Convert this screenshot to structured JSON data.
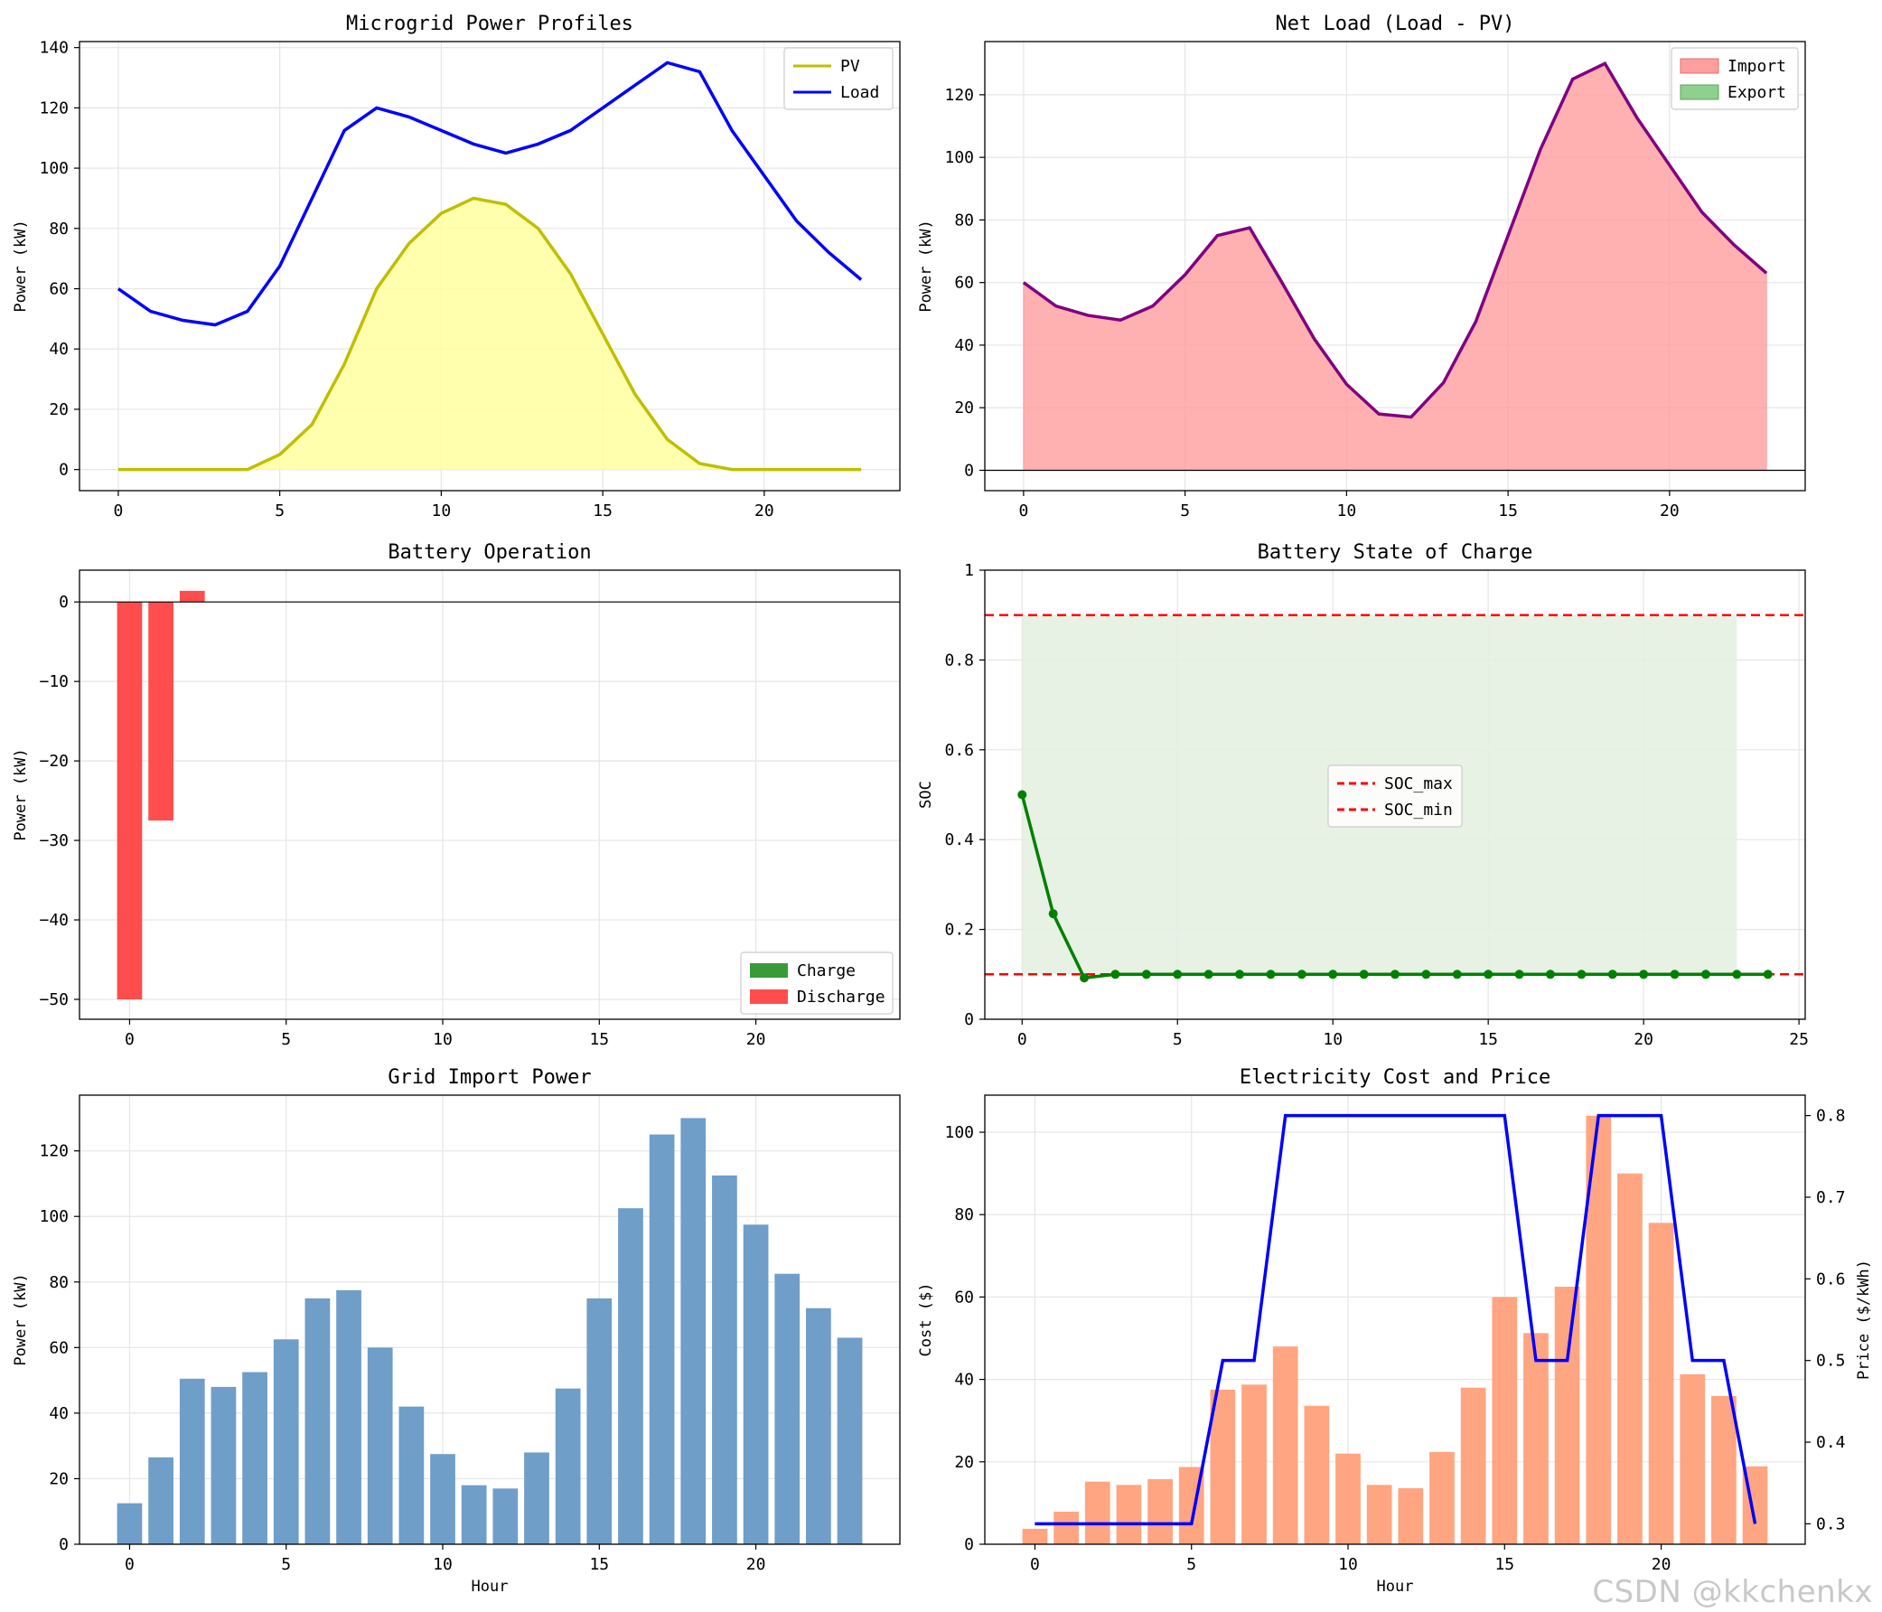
{
  "watermark": "CSDN @kkchenkx",
  "colors": {
    "pv": "#bfbf00",
    "pv_fill": "#ffffa0",
    "load": "#0000ff",
    "net": "#800080",
    "import_fill": "#ff9e9e",
    "export_fill": "#8ed08e",
    "charge": "#3a9a3a",
    "discharge": "#ff4d4d",
    "soc_line": "#008000",
    "limit": "#ff0000",
    "band": "#e4f0e1",
    "grid_bar": "#6f9ec8",
    "cost_bar": "#ffa07a",
    "price": "#0000ff"
  },
  "chart_data": [
    {
      "id": "pv-load",
      "type": "line",
      "title": "Microgrid Power Profiles",
      "xlabel": "",
      "ylabel": "Power (kW)",
      "xlim": [
        -1.2,
        24.2
      ],
      "ylim": [
        -7,
        142
      ],
      "xticks": [
        0,
        5,
        10,
        15,
        20
      ],
      "yticks": [
        0,
        20,
        40,
        60,
        80,
        100,
        120,
        140
      ],
      "x": [
        0,
        1,
        2,
        3,
        4,
        5,
        6,
        7,
        8,
        9,
        10,
        11,
        12,
        13,
        14,
        15,
        16,
        17,
        18,
        19,
        20,
        21,
        22,
        23
      ],
      "series": [
        {
          "name": "PV",
          "values": [
            0,
            0,
            0,
            0,
            0,
            5,
            15,
            35,
            60,
            75,
            85,
            90,
            88,
            80,
            65,
            45,
            25,
            10,
            2,
            0,
            0,
            0,
            0,
            0
          ]
        },
        {
          "name": "Load",
          "values": [
            60,
            52.5,
            49.5,
            48,
            52.5,
            67.5,
            90,
            112.5,
            120,
            117,
            112.5,
            108,
            105,
            108,
            112.5,
            120,
            127.5,
            135,
            132,
            112.5,
            97.5,
            82.5,
            72,
            63
          ]
        }
      ],
      "legend": [
        "PV",
        "Load"
      ],
      "legend_position": "top-right"
    },
    {
      "id": "net-load",
      "type": "area",
      "title": "Net Load (Load - PV)",
      "xlabel": "",
      "ylabel": "Power (kW)",
      "xlim": [
        -1.2,
        24.2
      ],
      "ylim": [
        -6.5,
        137
      ],
      "xticks": [
        0,
        5,
        10,
        15,
        20
      ],
      "yticks": [
        0,
        20,
        40,
        60,
        80,
        100,
        120
      ],
      "x": [
        0,
        1,
        2,
        3,
        4,
        5,
        6,
        7,
        8,
        9,
        10,
        11,
        12,
        13,
        14,
        15,
        16,
        17,
        18,
        19,
        20,
        21,
        22,
        23
      ],
      "values": [
        60,
        52.5,
        49.5,
        48,
        52.5,
        62.5,
        75,
        77.5,
        60,
        42,
        27.5,
        18,
        17,
        28,
        47.5,
        75,
        102.5,
        125,
        130,
        112.5,
        97.5,
        82.5,
        72,
        63
      ],
      "legend": [
        "Import",
        "Export"
      ],
      "legend_position": "top-right"
    },
    {
      "id": "battery-op",
      "type": "bar",
      "title": "Battery Operation",
      "xlabel": "",
      "ylabel": "Power (kW)",
      "xlim": [
        -1.6,
        24.6
      ],
      "ylim": [
        -52.5,
        4
      ],
      "xticks": [
        0,
        5,
        10,
        15,
        20
      ],
      "yticks": [
        0,
        -10,
        -20,
        -30,
        -40,
        -50
      ],
      "categories": [
        0,
        1,
        2
      ],
      "values": [
        -50,
        -27.5,
        1.4
      ],
      "legend": [
        "Charge",
        "Discharge"
      ],
      "legend_position": "lower-right"
    },
    {
      "id": "soc",
      "type": "line",
      "title": "Battery State of Charge",
      "xlabel": "",
      "ylabel": "SOC",
      "xlim": [
        -1.2,
        25.2
      ],
      "ylim": [
        0,
        1.0
      ],
      "xticks": [
        0,
        5,
        10,
        15,
        20,
        25
      ],
      "yticks": [
        0.0,
        0.2,
        0.4,
        0.6,
        0.8,
        1.0
      ],
      "x": [
        0,
        1,
        2,
        3,
        4,
        5,
        6,
        7,
        8,
        9,
        10,
        11,
        12,
        13,
        14,
        15,
        16,
        17,
        18,
        19,
        20,
        21,
        22,
        23,
        24
      ],
      "values": [
        0.5,
        0.235,
        0.092,
        0.1,
        0.1,
        0.1,
        0.1,
        0.1,
        0.1,
        0.1,
        0.1,
        0.1,
        0.1,
        0.1,
        0.1,
        0.1,
        0.1,
        0.1,
        0.1,
        0.1,
        0.1,
        0.1,
        0.1,
        0.1,
        0.1
      ],
      "soc_max": 0.9,
      "soc_min": 0.1,
      "legend": [
        "SOC_max",
        "SOC_min"
      ],
      "legend_position": "center"
    },
    {
      "id": "grid-import",
      "type": "bar",
      "title": "Grid Import Power",
      "xlabel": "Hour",
      "ylabel": "Power (kW)",
      "xlim": [
        -1.6,
        24.6
      ],
      "ylim": [
        0,
        137
      ],
      "xticks": [
        0,
        5,
        10,
        15,
        20
      ],
      "yticks": [
        0,
        20,
        40,
        60,
        80,
        100,
        120
      ],
      "categories": [
        0,
        1,
        2,
        3,
        4,
        5,
        6,
        7,
        8,
        9,
        10,
        11,
        12,
        13,
        14,
        15,
        16,
        17,
        18,
        19,
        20,
        21,
        22,
        23
      ],
      "values": [
        12.5,
        26.5,
        50.5,
        48,
        52.5,
        62.5,
        75,
        77.5,
        60,
        42,
        27.5,
        18,
        17,
        28,
        47.5,
        75,
        102.5,
        125,
        130,
        112.5,
        97.5,
        82.5,
        72,
        63
      ]
    },
    {
      "id": "cost-price",
      "type": "bar",
      "title": "Electricity Cost and Price",
      "xlabel": "Hour",
      "ylabel": "Cost ($)",
      "y2label": "Price ($/kWh)",
      "xlim": [
        -1.6,
        24.6
      ],
      "ylim": [
        0,
        109
      ],
      "y2lim": [
        0.275,
        0.825
      ],
      "xticks": [
        0,
        5,
        10,
        15,
        20
      ],
      "yticks": [
        0,
        20,
        40,
        60,
        80,
        100
      ],
      "y2ticks": [
        0.3,
        0.4,
        0.5,
        0.6,
        0.7,
        0.8
      ],
      "categories": [
        0,
        1,
        2,
        3,
        4,
        5,
        6,
        7,
        8,
        9,
        10,
        11,
        12,
        13,
        14,
        15,
        16,
        17,
        18,
        19,
        20,
        21,
        22,
        23
      ],
      "cost": [
        3.75,
        7.9,
        15.2,
        14.4,
        15.8,
        18.75,
        37.5,
        38.75,
        48,
        33.6,
        22,
        14.4,
        13.6,
        22.4,
        38,
        60,
        51.25,
        62.5,
        104,
        90,
        78,
        41.25,
        36,
        18.9
      ],
      "price": [
        0.3,
        0.3,
        0.3,
        0.3,
        0.3,
        0.3,
        0.5,
        0.5,
        0.8,
        0.8,
        0.8,
        0.8,
        0.8,
        0.8,
        0.8,
        0.8,
        0.5,
        0.5,
        0.8,
        0.8,
        0.8,
        0.5,
        0.5,
        0.3
      ]
    }
  ]
}
